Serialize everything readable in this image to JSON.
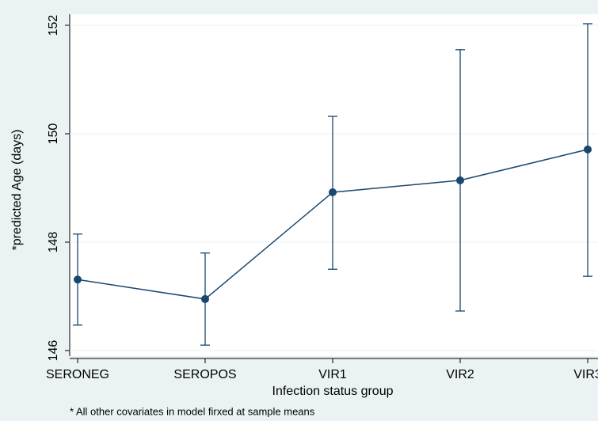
{
  "chart_data": {
    "type": "line",
    "categories": [
      "SERONEG",
      "SEROPOS",
      "VIR1",
      "VIR2",
      "VIR3"
    ],
    "series": [
      {
        "color": "#1a476f",
        "values": [
          147.31,
          146.95,
          148.92,
          149.14,
          149.71
        ],
        "lower": [
          146.47,
          146.1,
          147.5,
          146.73,
          147.37
        ],
        "upper": [
          148.15,
          147.8,
          150.32,
          151.55,
          152.03
        ]
      }
    ],
    "ylim": [
      145.9,
      152.2
    ],
    "yticks": [
      146,
      148,
      150,
      152
    ],
    "grid": true,
    "y_label": "*predicted Age (days)",
    "x_label": "Infection status group",
    "note": "* All other covariates in model firxed at sample means"
  }
}
